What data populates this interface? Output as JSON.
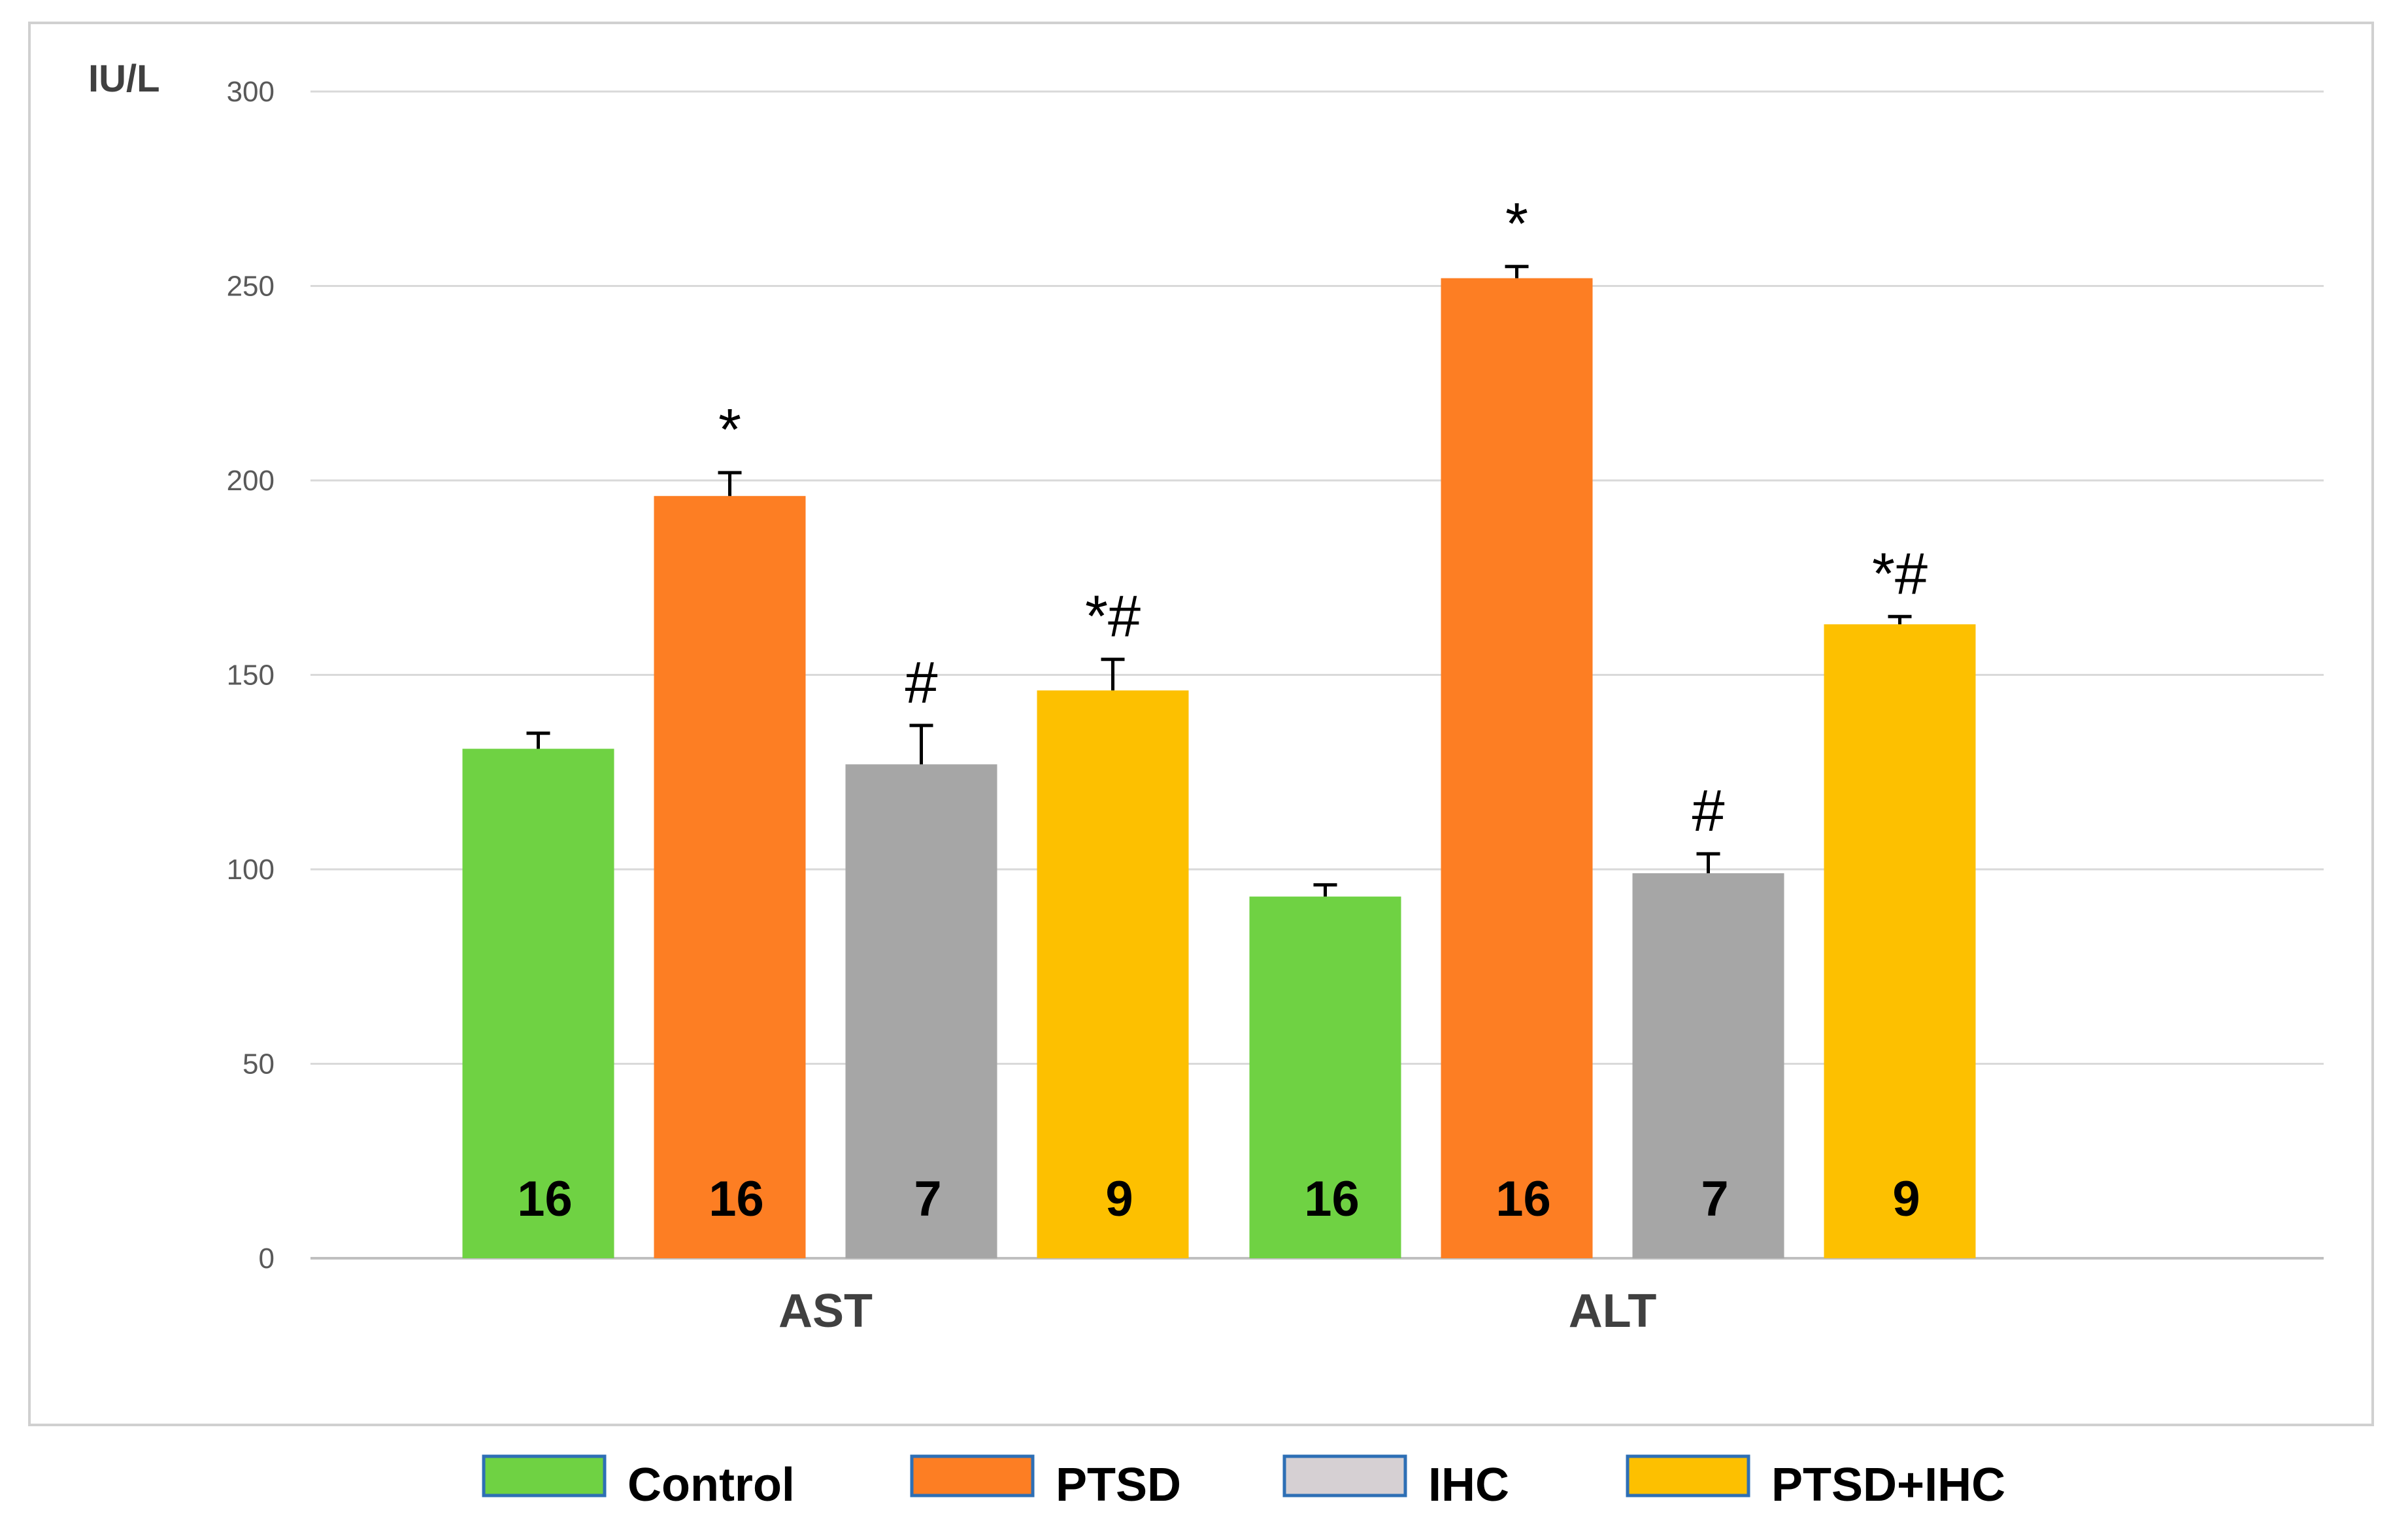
{
  "chart_data": {
    "type": "bar",
    "title": "",
    "ylabel": "IU/L",
    "xlabel": "",
    "ylim": [
      0,
      300
    ],
    "yticks": [
      0,
      50,
      100,
      150,
      200,
      250,
      300
    ],
    "grid": true,
    "legend_position": "bottom",
    "categories": [
      "AST",
      "ALT"
    ],
    "series": [
      {
        "name": "Control",
        "color": "#6fd243",
        "legend_border": "#2e6fb5",
        "values": [
          131,
          93
        ],
        "errors": [
          4,
          3
        ],
        "n": [
          "16",
          "16"
        ],
        "significance": [
          "",
          ""
        ]
      },
      {
        "name": "PTSD",
        "color": "#fd7e23",
        "legend_border": "#2e6fb5",
        "values": [
          196,
          252
        ],
        "errors": [
          6,
          3
        ],
        "n": [
          "16",
          "16"
        ],
        "significance": [
          "*",
          "*"
        ]
      },
      {
        "name": "IHC",
        "color": "#a6a6a6",
        "legend_color": "#d6d0d3",
        "legend_border": "#2e6fb5",
        "values": [
          127,
          99
        ],
        "errors": [
          10,
          5
        ],
        "n": [
          "7",
          "7"
        ],
        "significance": [
          "#",
          "#"
        ]
      },
      {
        "name": "PTSD+IHC",
        "color": "#fdc000",
        "legend_border": "#2e6fb5",
        "values": [
          146,
          163
        ],
        "errors": [
          8,
          2
        ],
        "n": [
          "9",
          "9"
        ],
        "significance": [
          "*#",
          "*#"
        ]
      }
    ]
  }
}
